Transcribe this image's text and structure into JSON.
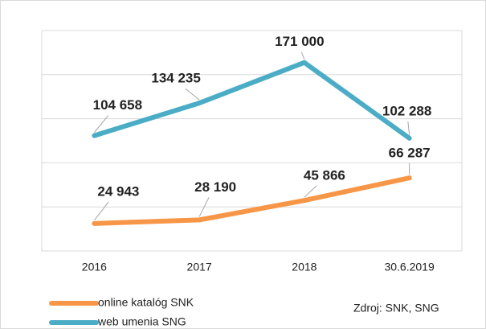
{
  "chart_data": {
    "type": "line",
    "categories": [
      "2016",
      "2017",
      "2018",
      "30.6.2019"
    ],
    "series": [
      {
        "name": "online katalóg SNK",
        "color": "#f79646",
        "label_color": "#e46c0a",
        "values": [
          24943,
          28190,
          45866,
          66287
        ],
        "value_labels": [
          "24 943",
          "28 190",
          "45 866",
          "66 287"
        ]
      },
      {
        "name": "web umenia SNG",
        "color": "#4bacc6",
        "label_color": "#4a7ebb",
        "values": [
          104658,
          134235,
          171000,
          102288
        ],
        "value_labels": [
          "104 658",
          "134 235",
          "171 000",
          "102 288"
        ]
      }
    ],
    "ylim": [
      0,
      200000
    ],
    "yticks": [
      0,
      40000,
      80000,
      120000,
      160000,
      200000
    ],
    "grid": true,
    "annotation": "Zdroj: SNK, SNG"
  }
}
